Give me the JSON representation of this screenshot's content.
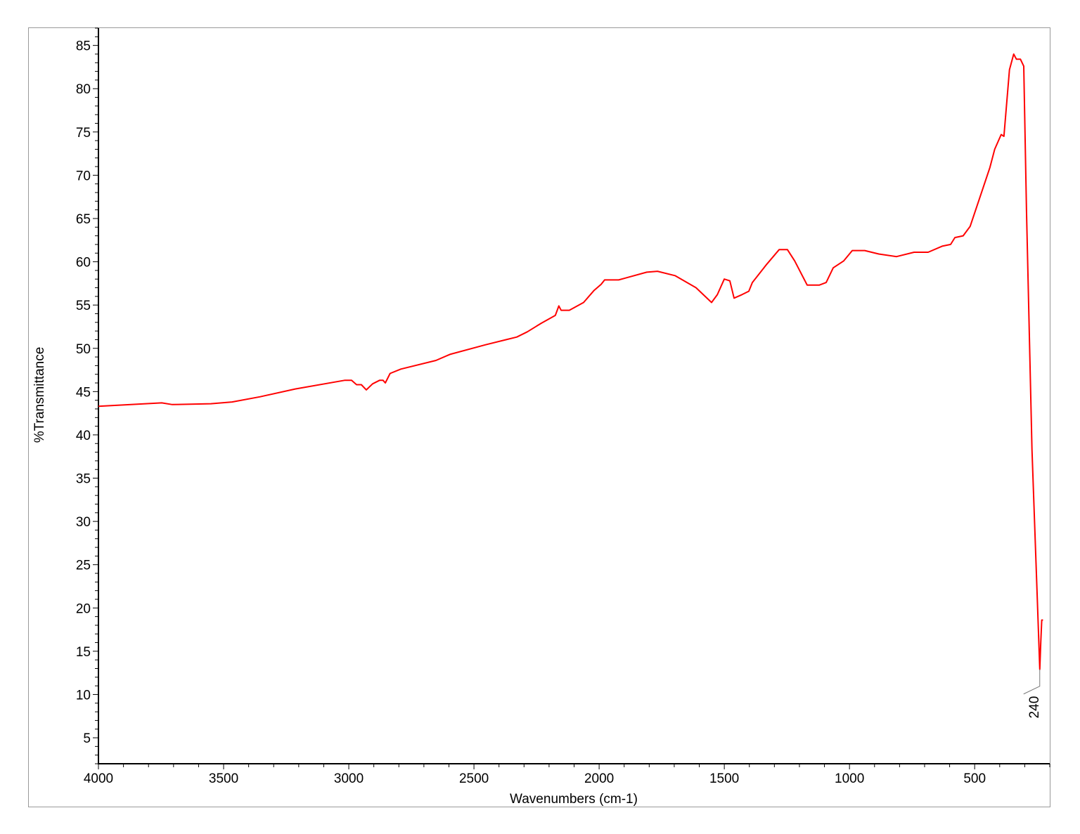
{
  "chart_data": {
    "type": "line",
    "title": "",
    "xlabel": "Wavenumbers (cm-1)",
    "ylabel": "%Transmittance",
    "xlim": [
      4000,
      200
    ],
    "ylim": [
      2,
      87
    ],
    "x_reversed": true,
    "grid": false,
    "x_ticks": [
      4000,
      3500,
      3000,
      2500,
      2000,
      1500,
      1000,
      500
    ],
    "y_ticks": [
      5,
      10,
      15,
      20,
      25,
      30,
      35,
      40,
      45,
      50,
      55,
      60,
      65,
      70,
      75,
      80,
      85
    ],
    "line_color": "#ff0000",
    "annotations": [
      {
        "x": 240,
        "y": 12.9,
        "label": "240"
      }
    ],
    "series": [
      {
        "x": [
          4000,
          3747,
          3705,
          3551,
          3466,
          3354,
          3214,
          3017,
          2989,
          2969,
          2950,
          2930,
          2905,
          2877,
          2863,
          2854,
          2835,
          2792,
          2652,
          2596,
          2455,
          2371,
          2329,
          2287,
          2231,
          2175,
          2161,
          2152,
          2119,
          2062,
          2020,
          1992,
          1978,
          1922,
          1810,
          1767,
          1697,
          1613,
          1551,
          1528,
          1500,
          1478,
          1461,
          1430,
          1402,
          1388,
          1331,
          1281,
          1248,
          1219,
          1169,
          1121,
          1093,
          1065,
          1023,
          989,
          939,
          883,
          812,
          742,
          686,
          630,
          596,
          579,
          546,
          518,
          476,
          439,
          420,
          394,
          383,
          361,
          344,
          333,
          317,
          304,
          293,
          271,
          250,
          240,
          236,
          232,
          227
        ],
        "y": [
          43.3,
          43.7,
          43.5,
          43.6,
          43.8,
          44.4,
          45.3,
          46.3,
          46.3,
          45.8,
          45.8,
          45.2,
          45.9,
          46.3,
          46.3,
          46.0,
          47.1,
          47.6,
          48.6,
          49.3,
          50.4,
          51.0,
          51.3,
          51.9,
          52.9,
          53.8,
          54.9,
          54.4,
          54.4,
          55.3,
          56.7,
          57.4,
          57.9,
          57.9,
          58.8,
          58.9,
          58.4,
          57.0,
          55.3,
          56.2,
          58.0,
          57.8,
          55.8,
          56.2,
          56.6,
          57.6,
          59.7,
          61.4,
          61.4,
          60.1,
          57.3,
          57.3,
          57.6,
          59.3,
          60.1,
          61.3,
          61.3,
          60.9,
          60.6,
          61.1,
          61.1,
          61.8,
          62.0,
          62.8,
          63.0,
          64.1,
          67.7,
          70.9,
          73.0,
          74.7,
          74.5,
          82.2,
          84.0,
          83.4,
          83.4,
          82.6,
          65.9,
          38.3,
          21.2,
          12.9,
          16.0,
          18.6,
          18.6
        ]
      }
    ]
  }
}
